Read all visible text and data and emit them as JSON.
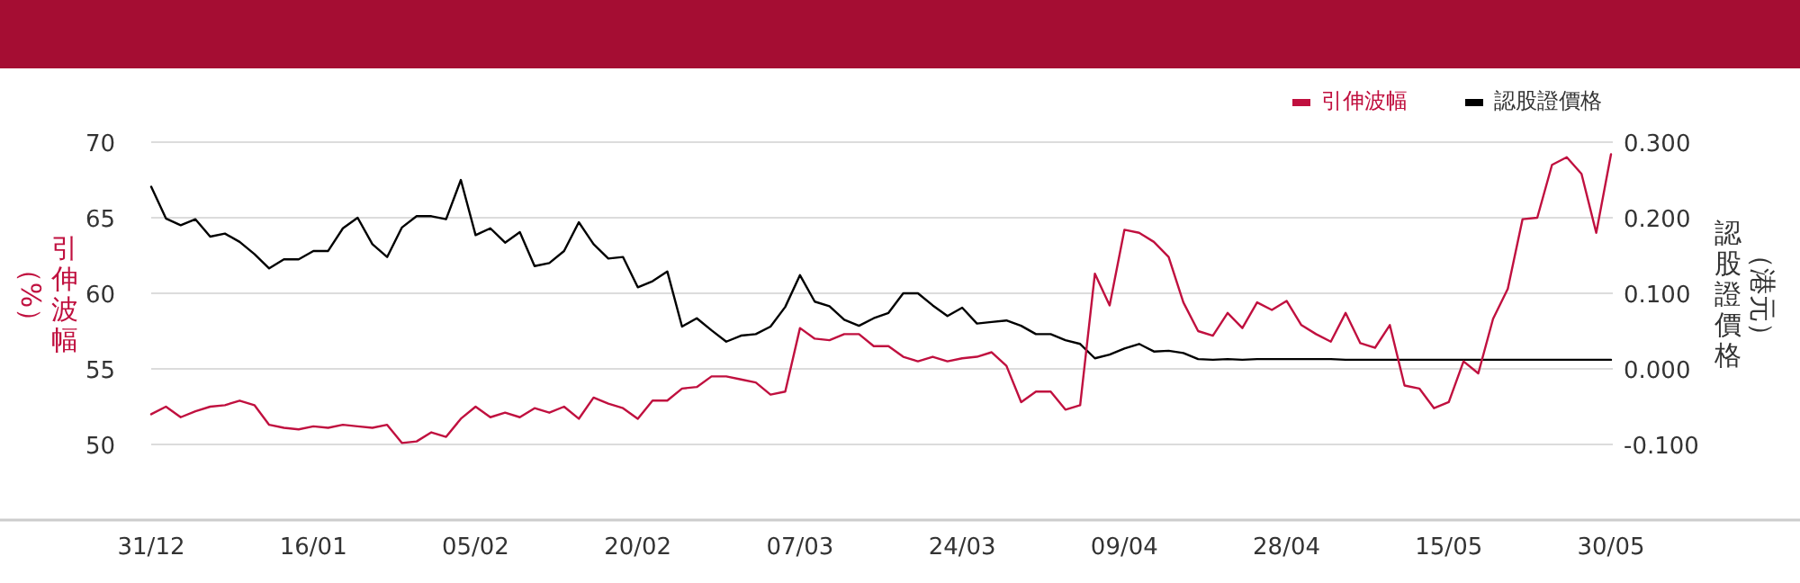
{
  "chart_data": {
    "type": "line",
    "categories": [
      "31/12",
      null,
      null,
      null,
      null,
      null,
      null,
      null,
      null,
      null,
      null,
      "16/01",
      null,
      null,
      null,
      null,
      null,
      null,
      null,
      null,
      null,
      null,
      "05/02",
      null,
      null,
      null,
      null,
      null,
      null,
      null,
      null,
      null,
      null,
      "20/02",
      null,
      null,
      null,
      null,
      null,
      null,
      null,
      null,
      null,
      null,
      "07/03",
      null,
      null,
      null,
      null,
      null,
      null,
      null,
      null,
      null,
      null,
      "24/03",
      null,
      null,
      null,
      null,
      null,
      null,
      null,
      null,
      null,
      null,
      "09/04",
      null,
      null,
      null,
      null,
      null,
      null,
      null,
      null,
      null,
      null,
      "28/04",
      null,
      null,
      null,
      null,
      null,
      null,
      null,
      null,
      null,
      null,
      "15/05",
      null,
      null,
      null,
      null,
      null,
      null,
      null,
      null,
      null,
      null,
      "30/05"
    ],
    "series": [
      {
        "name": "引伸波幅",
        "color": "#c0103f",
        "axis": "y",
        "values": [
          52.0,
          52.5,
          51.8,
          52.2,
          52.5,
          52.6,
          52.9,
          52.6,
          51.3,
          51.1,
          51.0,
          51.2,
          51.1,
          51.3,
          51.2,
          51.1,
          51.3,
          50.1,
          50.2,
          50.8,
          50.5,
          51.7,
          52.5,
          51.8,
          52.1,
          51.8,
          52.4,
          52.1,
          52.5,
          51.7,
          53.1,
          52.7,
          52.4,
          51.7,
          52.9,
          52.9,
          53.7,
          53.8,
          54.5,
          54.5,
          54.3,
          54.1,
          53.3,
          53.5,
          57.7,
          57.0,
          56.9,
          57.3,
          57.3,
          56.5,
          56.5,
          55.8,
          55.5,
          55.8,
          55.5,
          55.7,
          55.8,
          56.1,
          55.2,
          52.8,
          53.5,
          53.5,
          52.3,
          52.6,
          61.3,
          59.2,
          64.2,
          64.0,
          63.4,
          62.4,
          59.4,
          57.5,
          57.2,
          58.7,
          57.7,
          59.4,
          58.9,
          59.5,
          57.9,
          57.3,
          56.8,
          58.7,
          56.7,
          56.4,
          57.9,
          53.9,
          53.7,
          52.4,
          52.8,
          55.5,
          54.7,
          58.3,
          60.3,
          64.9,
          65.0,
          68.5,
          69.0,
          67.9,
          64.0,
          69.2
        ]
      },
      {
        "name": "認股證價格",
        "color": "#000000",
        "axis": "y2",
        "values": [
          0.241,
          0.199,
          0.19,
          0.198,
          0.175,
          0.179,
          0.168,
          0.152,
          0.133,
          0.145,
          0.145,
          0.156,
          0.156,
          0.186,
          0.2,
          0.165,
          0.148,
          0.187,
          0.202,
          0.202,
          0.198,
          0.25,
          0.177,
          0.186,
          0.167,
          0.181,
          0.136,
          0.14,
          0.156,
          0.194,
          0.165,
          0.146,
          0.148,
          0.108,
          0.116,
          0.129,
          0.056,
          0.067,
          0.051,
          0.036,
          0.044,
          0.046,
          0.056,
          0.082,
          0.124,
          0.089,
          0.083,
          0.065,
          0.057,
          0.067,
          0.074,
          0.1,
          0.1,
          0.084,
          0.07,
          0.081,
          0.06,
          0.062,
          0.064,
          0.057,
          0.046,
          0.046,
          0.038,
          0.033,
          0.014,
          0.019,
          0.027,
          0.033,
          0.023,
          0.024,
          0.021,
          0.013,
          0.012,
          0.013,
          0.012,
          0.013,
          0.013,
          0.013,
          0.013,
          0.013,
          0.013,
          0.012,
          0.012,
          0.012,
          0.012,
          0.012,
          0.012,
          0.012,
          0.012,
          0.012,
          0.012,
          0.012,
          0.012,
          0.012,
          0.012,
          0.012,
          0.012,
          0.012,
          0.012,
          0.012
        ]
      }
    ],
    "ylabel": "引伸波幅（%）",
    "y2label": "認股證價格（港元）",
    "ylim": [
      45,
      70
    ],
    "yticks": [
      50,
      55,
      60,
      65,
      70
    ],
    "y2lim": [
      -0.2,
      0.3
    ],
    "y2ticks": [
      {
        "value": -0.1,
        "label": "-0.100"
      },
      {
        "value": 0,
        "label": "0.000"
      },
      {
        "value": 0.1,
        "label": "0.100"
      },
      {
        "value": 0.2,
        "label": "0.200"
      },
      {
        "value": 0.3,
        "label": "0.300"
      }
    ],
    "grid": "y",
    "legend": "top right",
    "line_style": "solid"
  }
}
